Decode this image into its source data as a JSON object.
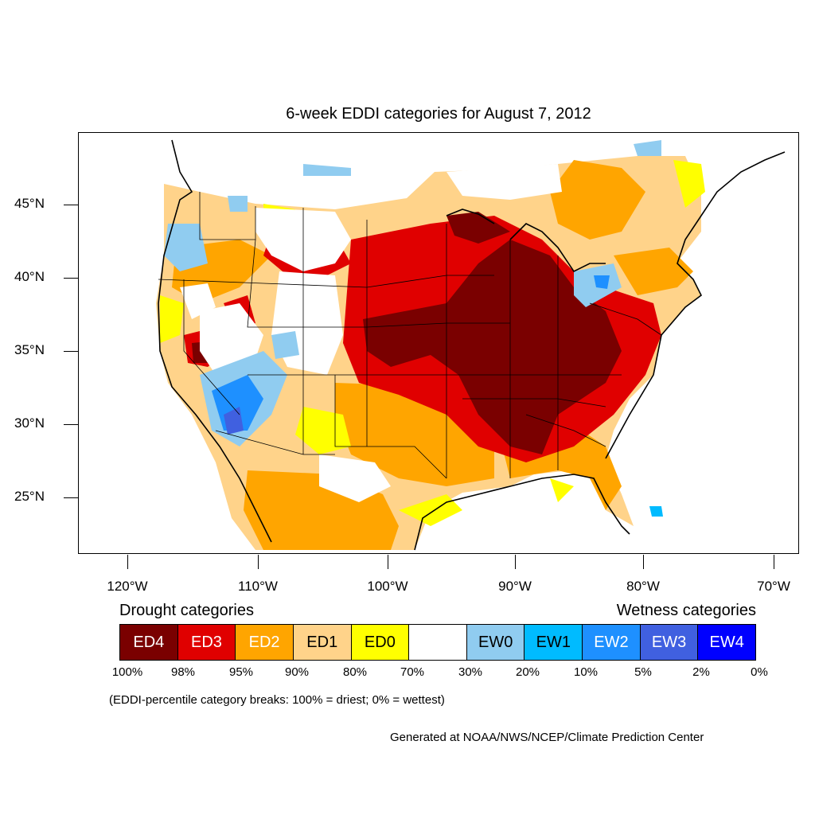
{
  "title": "6-week EDDI categories for August 7, 2012",
  "map": {
    "projection": "lambert-conic",
    "region": "Contiguous United States",
    "lat_axis": [
      "45°N",
      "40°N",
      "35°N",
      "30°N",
      "25°N"
    ],
    "lon_axis": [
      "120°W",
      "110°W",
      "100°W",
      "90°W",
      "80°W",
      "70°W"
    ]
  },
  "legend": {
    "drought_heading": "Drought categories",
    "wetness_heading": "Wetness categories",
    "categories": [
      {
        "label": "ED4",
        "color": "#7a0000",
        "text_color": "#ffffff"
      },
      {
        "label": "ED3",
        "color": "#e00000",
        "text_color": "#ffffff"
      },
      {
        "label": "ED2",
        "color": "#ffa500",
        "text_color": "#ffffff"
      },
      {
        "label": "ED1",
        "color": "#ffd38a",
        "text_color": "#000000"
      },
      {
        "label": "ED0",
        "color": "#ffff00",
        "text_color": "#000000"
      },
      {
        "label": "",
        "color": "#ffffff",
        "text_color": "#000000"
      },
      {
        "label": "EW0",
        "color": "#90ccf0",
        "text_color": "#000000"
      },
      {
        "label": "EW1",
        "color": "#00bbff",
        "text_color": "#000000"
      },
      {
        "label": "EW2",
        "color": "#1e90ff",
        "text_color": "#ffffff"
      },
      {
        "label": "EW3",
        "color": "#4060e0",
        "text_color": "#ffffff"
      },
      {
        "label": "EW4",
        "color": "#0000ff",
        "text_color": "#ffffff"
      }
    ],
    "breaks": [
      "100%",
      "98%",
      "95%",
      "90%",
      "80%",
      "70%",
      "30%",
      "20%",
      "10%",
      "5%",
      "2%",
      "0%"
    ]
  },
  "note": "(EDDI-percentile category breaks: 100% = driest; 0% = wettest)",
  "credit": "Generated at NOAA/NWS/NCEP/Climate Prediction Center"
}
